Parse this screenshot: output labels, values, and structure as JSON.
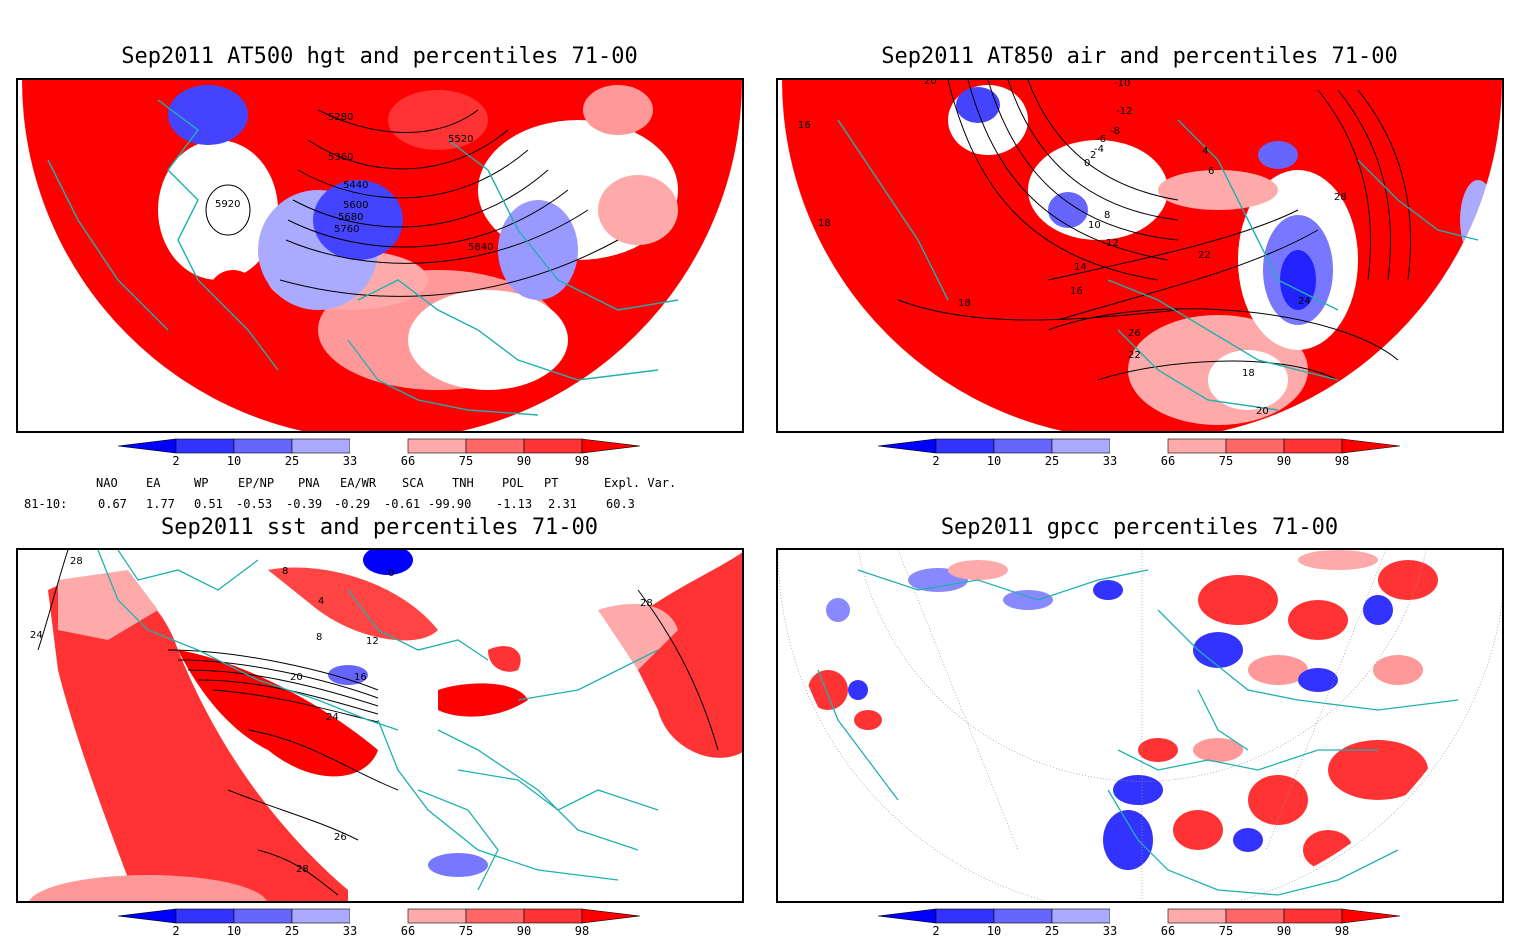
{
  "panels": [
    {
      "title": "Sep2011 AT500 hgt and percentiles 71-00",
      "contour_labels": [
        "5280",
        "5360",
        "5440",
        "5520",
        "5600",
        "5680",
        "5760",
        "5840",
        "5920"
      ]
    },
    {
      "title": "Sep2011 AT850 air and percentiles 71-00",
      "contour_labels": [
        "20",
        "16",
        "18",
        "-10",
        "-12",
        "-8",
        "-6",
        "-4",
        "0",
        "2",
        "4",
        "6",
        "8",
        "10",
        "12",
        "14",
        "16",
        "18",
        "20",
        "22",
        "24",
        "26",
        "28",
        "22",
        "18"
      ]
    },
    {
      "title": "Sep2011 sst and percentiles 71-00",
      "contour_labels": [
        "28",
        "24",
        "8",
        "0",
        "4",
        "8",
        "12",
        "16",
        "20",
        "24",
        "28",
        "28",
        "26"
      ]
    },
    {
      "title": "Sep2011 gpcc percentiles 71-00",
      "contour_labels": []
    }
  ],
  "colorbar": {
    "ticks": [
      "2",
      "10",
      "25",
      "33",
      "66",
      "75",
      "90",
      "98"
    ],
    "colors": [
      "#0000ff",
      "#3333ff",
      "#6666ff",
      "#aaaaff",
      "#ffffff",
      "#ffaaaa",
      "#ff6666",
      "#ff3333",
      "#ff0000"
    ]
  },
  "indices": {
    "headers": [
      "NAO",
      "EA",
      "WP",
      "EP/NP",
      "PNA",
      "EA/WR",
      "SCA",
      "TNH",
      "POL",
      "PT",
      "Expl. Var."
    ],
    "row_label": "81-10:",
    "values": [
      "0.67",
      "1.77",
      "0.51",
      "-0.53",
      "-0.39",
      "-0.29",
      "-0.61",
      "-99.90",
      "-1.13",
      "2.31",
      "60.3"
    ]
  },
  "colors": {
    "land_outline": "#20b0b0",
    "positive": "#ff0000",
    "negative": "#3333ff"
  }
}
